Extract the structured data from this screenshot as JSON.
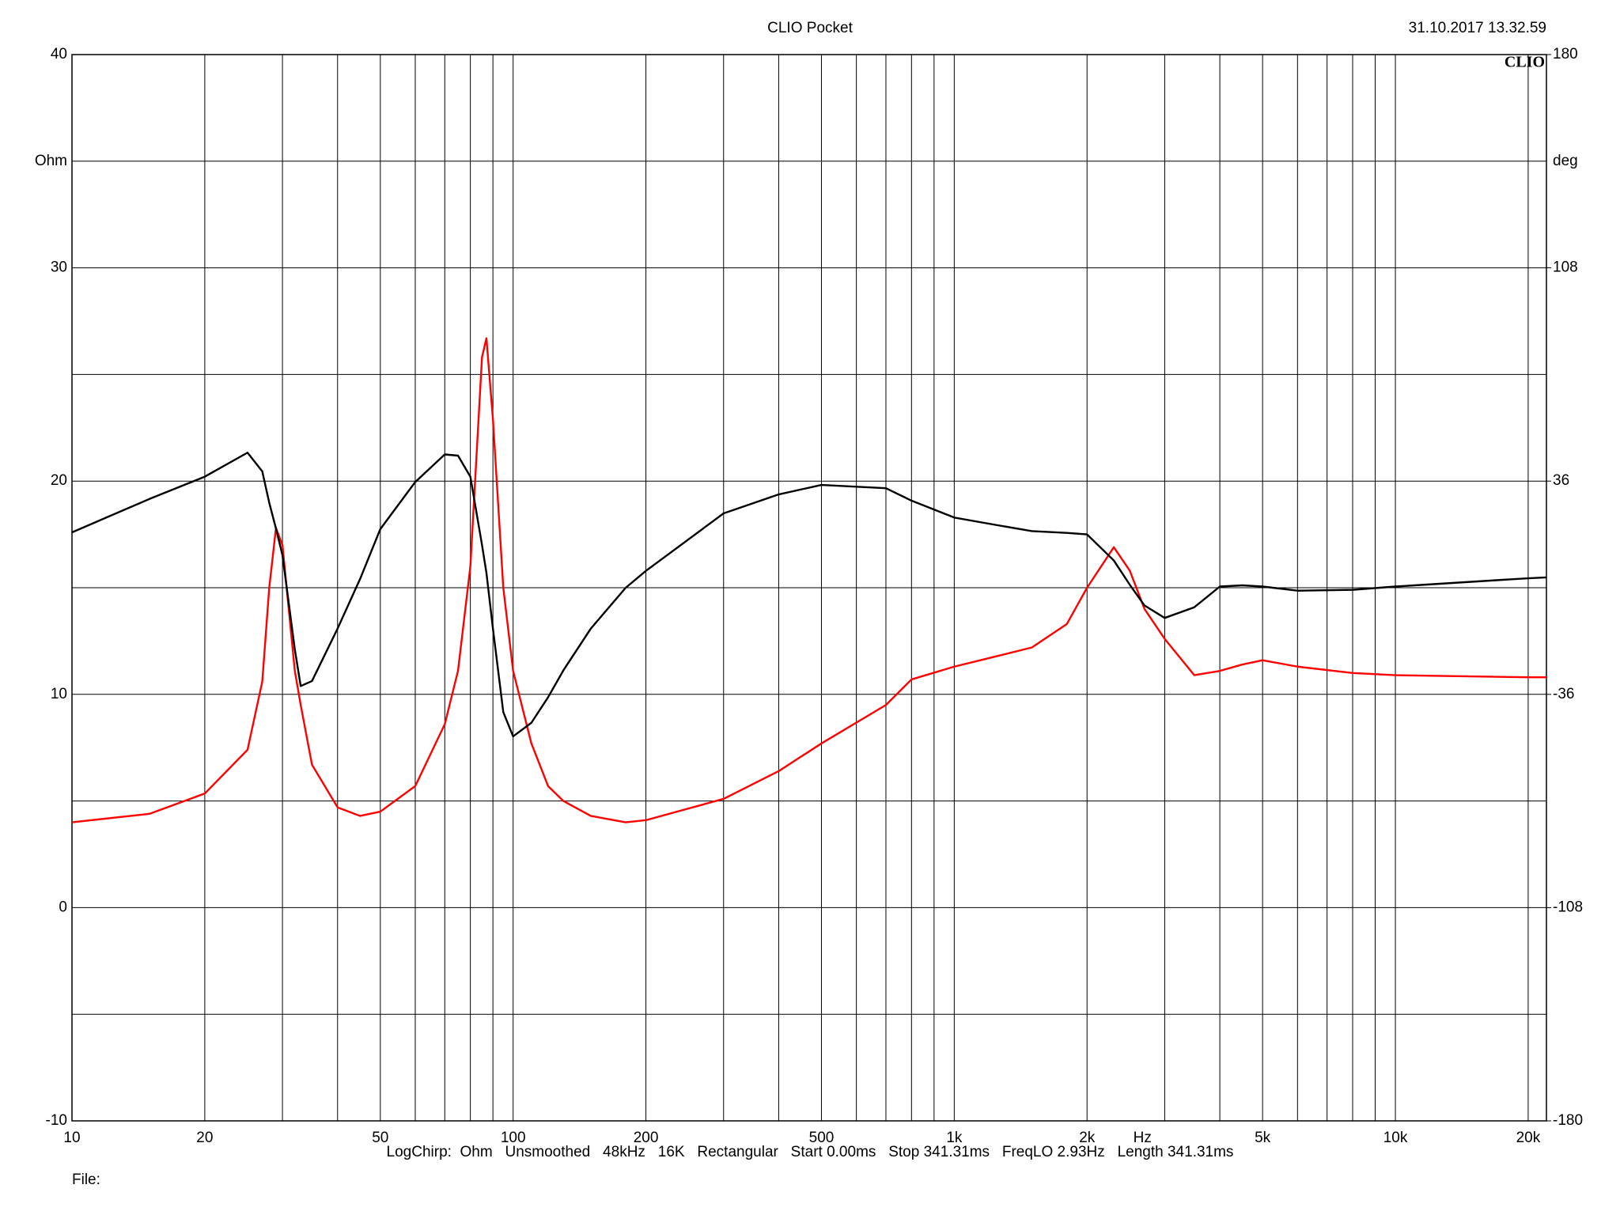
{
  "chart_data": {
    "type": "line",
    "title": "CLIO Pocket",
    "timestamp": "31.10.2017 13.32.59",
    "logo": "CLIO",
    "y_unit": "Ohm",
    "y2_unit": "deg",
    "x_unit": "Hz",
    "settings_line": "LogChirp:  Ohm   Unsmoothed   48kHz   16K   Rectangular   Start 0.00ms   Stop 341.31ms   FreqLO 2.93Hz   Length 341.31ms",
    "file_label": "File:",
    "xlog": true,
    "grid": true,
    "xlim": [
      10,
      22000
    ],
    "xticks": [
      10,
      20,
      50,
      100,
      200,
      500,
      {
        "value": 1000,
        "label": "1k"
      },
      {
        "value": 2000,
        "label": "2k"
      },
      {
        "value": 5000,
        "label": "5k"
      },
      {
        "value": 10000,
        "label": "10k"
      },
      {
        "value": 20000,
        "label": "20k"
      }
    ],
    "xgrid": [
      30,
      40,
      60,
      70,
      80,
      90,
      300,
      400,
      600,
      700,
      800,
      900,
      3000,
      4000,
      6000,
      7000,
      8000,
      9000
    ],
    "ylim": [
      -10,
      40
    ],
    "yticks": [
      -10,
      0,
      10,
      20,
      30,
      40
    ],
    "ygrid": [
      -5,
      5,
      15,
      25,
      35
    ],
    "y2lim": [
      -180,
      180
    ],
    "y2ticks": [
      -180,
      -108,
      -36,
      36,
      108,
      180
    ],
    "x": [
      10,
      15,
      20,
      25,
      27,
      28,
      29,
      30,
      32,
      33,
      35,
      40,
      45,
      50,
      60,
      70,
      75,
      80,
      85,
      87,
      90,
      95,
      100,
      110,
      120,
      130,
      150,
      180,
      200,
      300,
      400,
      500,
      700,
      800,
      1000,
      1200,
      1500,
      1800,
      2000,
      2300,
      2500,
      2700,
      3000,
      3500,
      4000,
      4500,
      5000,
      6000,
      8000,
      10000,
      20000,
      22000
    ],
    "series": [
      {
        "color": "#ff0000",
        "values": [
          4.0,
          4.4,
          5.35,
          7.4,
          10.6,
          15,
          17.8,
          17,
          11.1,
          9.5,
          6.7,
          4.7,
          4.3,
          4.5,
          5.7,
          8.6,
          11.1,
          16,
          25.8,
          26.7,
          22.9,
          15,
          11.1,
          7.7,
          5.7,
          5.0,
          4.3,
          4.0,
          4.1,
          5.1,
          6.4,
          7.7,
          9.5,
          10.7,
          11.3,
          11.7,
          12.2,
          13.3,
          15,
          16.9,
          15.8,
          14,
          12.6,
          10.9,
          11.1,
          11.4,
          11.6,
          11.3,
          11.0,
          10.9,
          10.8,
          10.8
        ]
      },
      {
        "color": "#000000",
        "axis": "y2",
        "values": [
          18.7,
          30,
          37.5,
          45.6,
          39.3,
          28.7,
          20,
          11,
          -20.8,
          -33.2,
          -31.5,
          -13.8,
          3,
          19.8,
          35.7,
          45,
          44.6,
          37.5,
          14.5,
          5,
          -13.8,
          -42,
          -50.2,
          -45.6,
          -37,
          -27.9,
          -13.8,
          0,
          5.7,
          25.1,
          31.5,
          34.7,
          33.6,
          29.4,
          23.7,
          21.6,
          19.1,
          18.5,
          18,
          9.2,
          1,
          -6,
          -10.2,
          -6.6,
          0.4,
          0.8,
          0.4,
          -1,
          -0.7,
          0.4,
          3.2,
          3.5
        ]
      }
    ]
  }
}
